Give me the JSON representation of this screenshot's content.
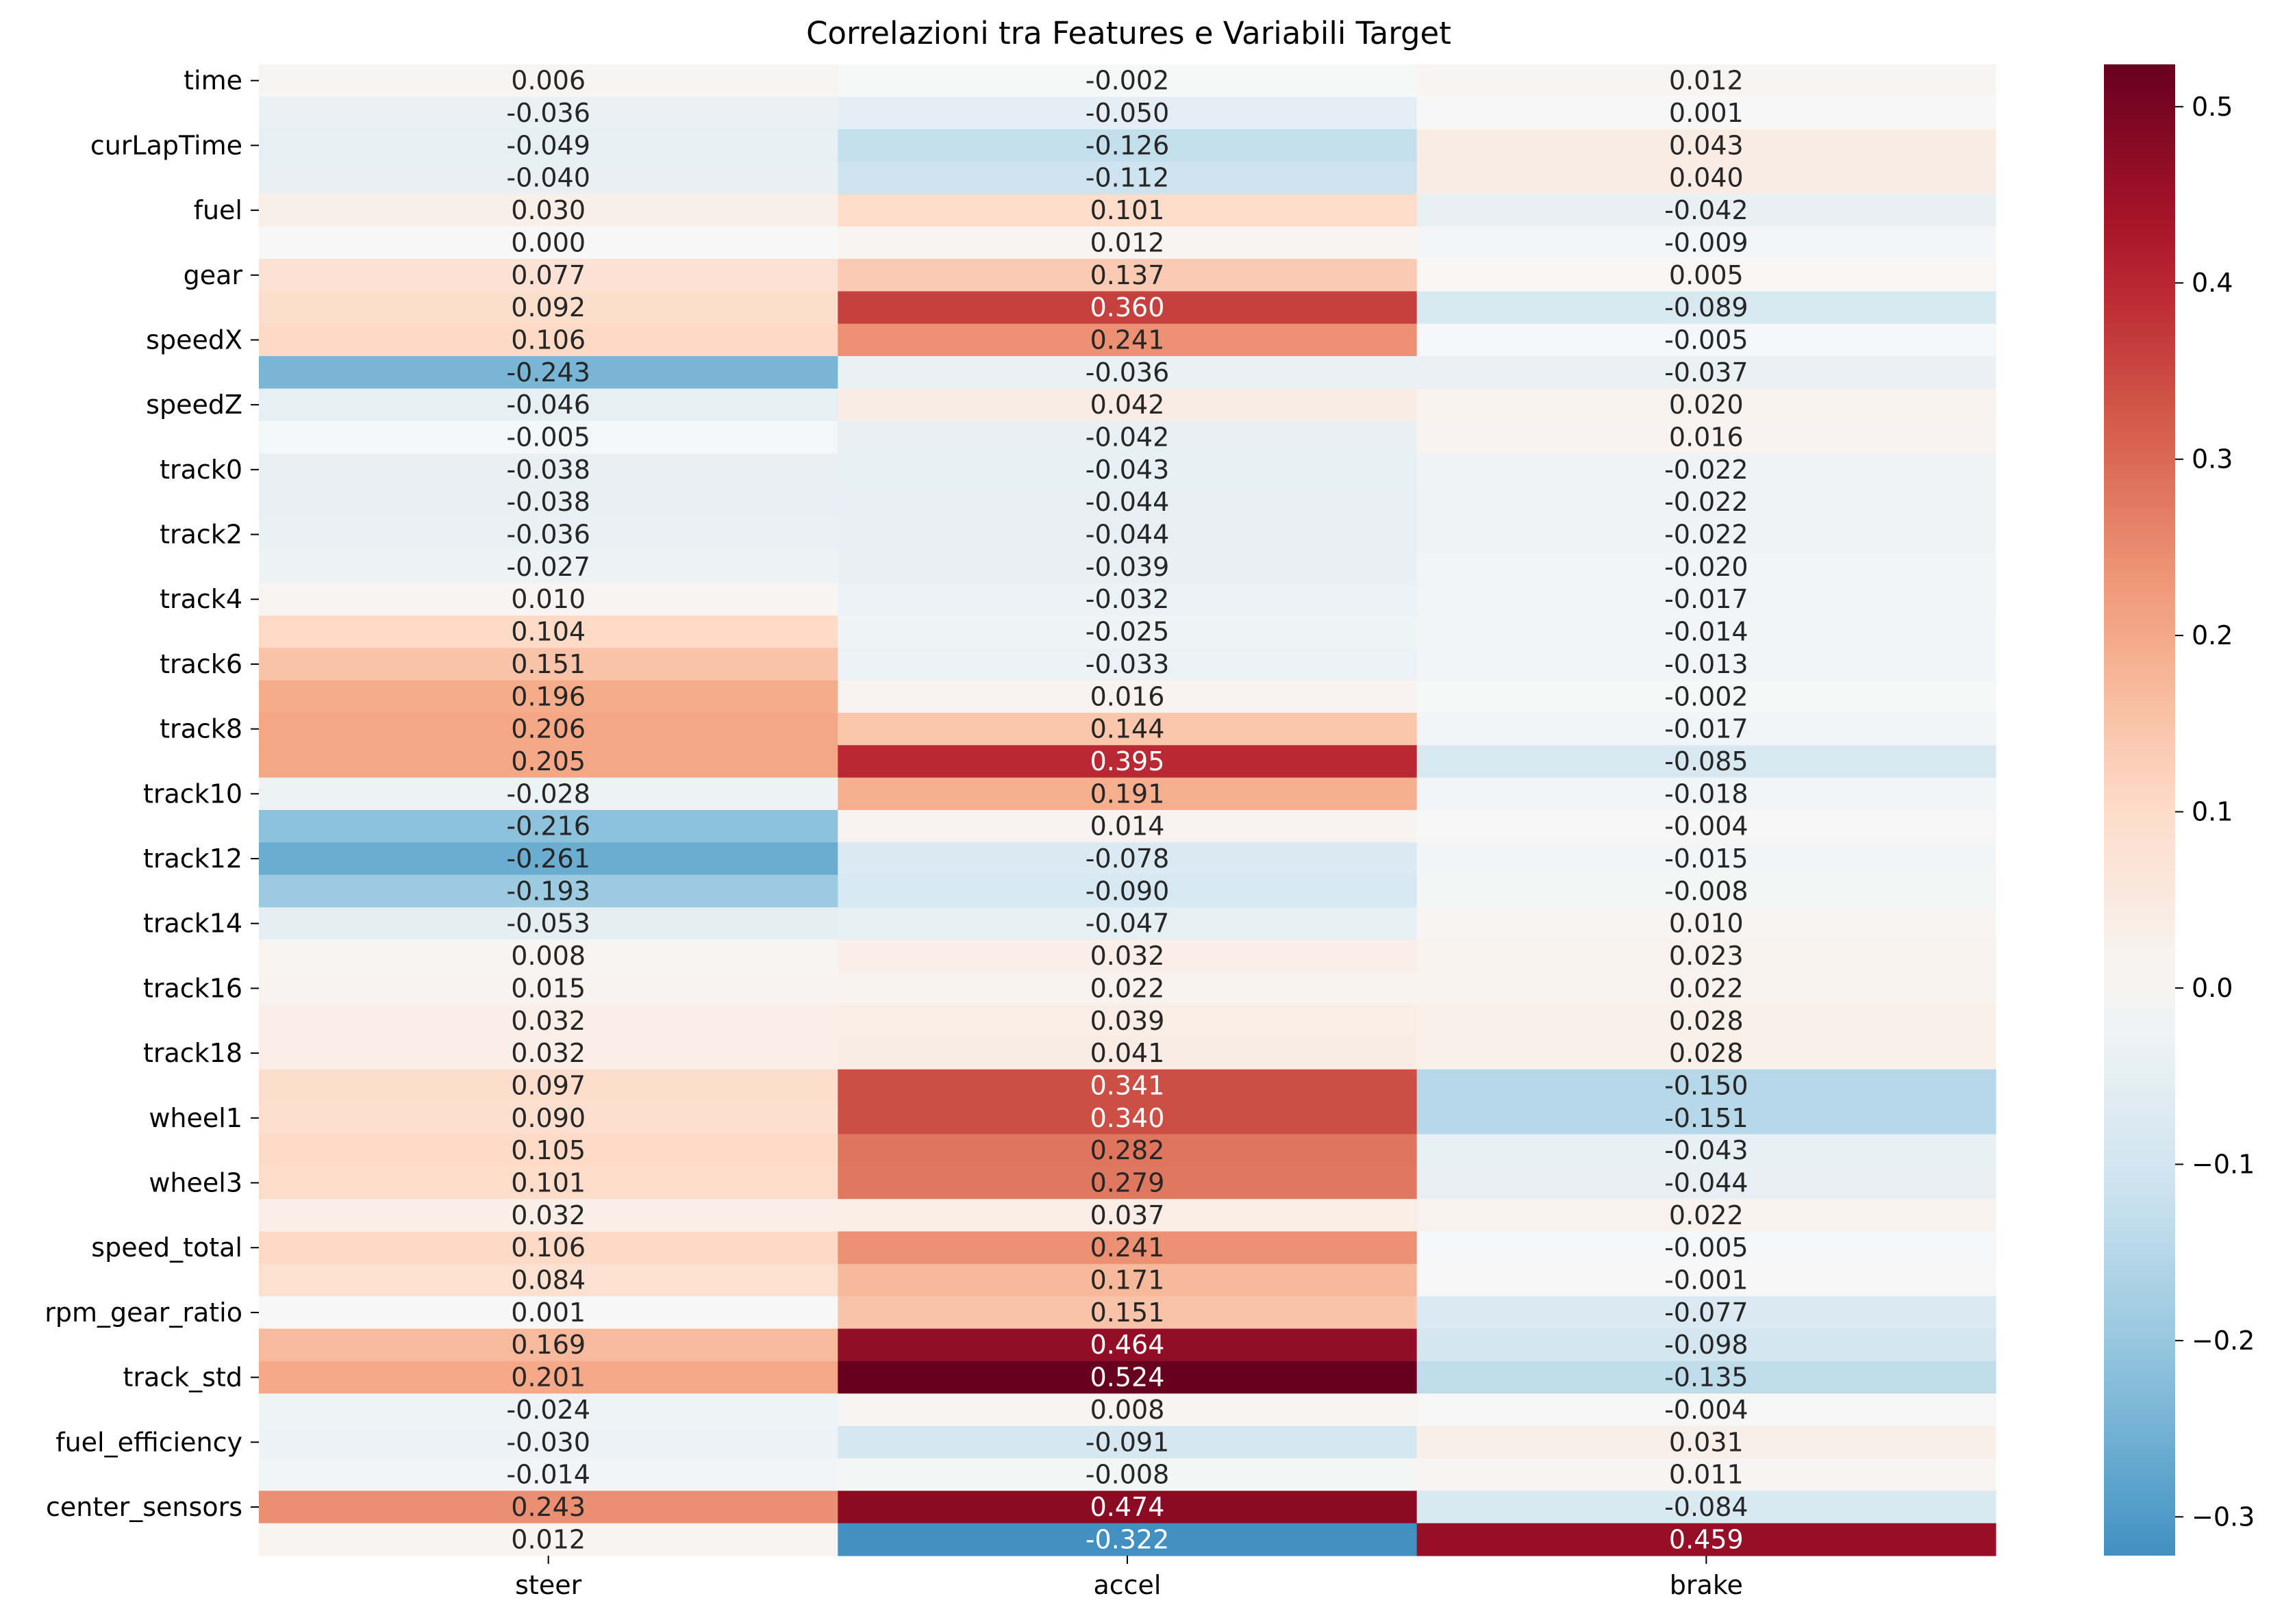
{
  "chart_data": {
    "type": "heatmap",
    "title": "Correlazioni tra Features e Variabili Target",
    "xlabel": "",
    "ylabel": "",
    "columns": [
      "steer",
      "accel",
      "brake"
    ],
    "row_tick_labels": [
      "time",
      "",
      "curLapTime",
      "",
      "fuel",
      "",
      "gear",
      "",
      "speedX",
      "",
      "speedZ",
      "",
      "track0",
      "",
      "track2",
      "",
      "track4",
      "",
      "track6",
      "",
      "track8",
      "",
      "track10",
      "",
      "track12",
      "",
      "track14",
      "",
      "track16",
      "",
      "track18",
      "",
      "wheel1",
      "",
      "wheel3",
      "",
      "speed_total",
      "",
      "rpm_gear_ratio",
      "",
      "track_std",
      "",
      "fuel_efficiency",
      "",
      "center_sensors",
      ""
    ],
    "values": [
      [
        0.006,
        -0.002,
        0.012
      ],
      [
        -0.036,
        -0.05,
        0.001
      ],
      [
        -0.049,
        -0.126,
        0.043
      ],
      [
        -0.04,
        -0.112,
        0.04
      ],
      [
        0.03,
        0.101,
        -0.042
      ],
      [
        0.0,
        0.012,
        -0.009
      ],
      [
        0.077,
        0.137,
        0.005
      ],
      [
        0.092,
        0.36,
        -0.089
      ],
      [
        0.106,
        0.241,
        -0.005
      ],
      [
        -0.243,
        -0.036,
        -0.037
      ],
      [
        -0.046,
        0.042,
        0.02
      ],
      [
        -0.005,
        -0.042,
        0.016
      ],
      [
        -0.038,
        -0.043,
        -0.022
      ],
      [
        -0.038,
        -0.044,
        -0.022
      ],
      [
        -0.036,
        -0.044,
        -0.022
      ],
      [
        -0.027,
        -0.039,
        -0.02
      ],
      [
        0.01,
        -0.032,
        -0.017
      ],
      [
        0.104,
        -0.025,
        -0.014
      ],
      [
        0.151,
        -0.033,
        -0.013
      ],
      [
        0.196,
        0.016,
        -0.002
      ],
      [
        0.206,
        0.144,
        -0.017
      ],
      [
        0.205,
        0.395,
        -0.085
      ],
      [
        -0.028,
        0.191,
        -0.018
      ],
      [
        -0.216,
        0.014,
        -0.004
      ],
      [
        -0.261,
        -0.078,
        -0.015
      ],
      [
        -0.193,
        -0.09,
        -0.008
      ],
      [
        -0.053,
        -0.047,
        0.01
      ],
      [
        0.008,
        0.032,
        0.023
      ],
      [
        0.015,
        0.022,
        0.022
      ],
      [
        0.032,
        0.039,
        0.028
      ],
      [
        0.032,
        0.041,
        0.028
      ],
      [
        0.097,
        0.341,
        -0.15
      ],
      [
        0.09,
        0.34,
        -0.151
      ],
      [
        0.105,
        0.282,
        -0.043
      ],
      [
        0.101,
        0.279,
        -0.044
      ],
      [
        0.032,
        0.037,
        0.022
      ],
      [
        0.106,
        0.241,
        -0.005
      ],
      [
        0.084,
        0.171,
        -0.001
      ],
      [
        0.001,
        0.151,
        -0.077
      ],
      [
        0.169,
        0.464,
        -0.098
      ],
      [
        0.201,
        0.524,
        -0.135
      ],
      [
        -0.024,
        0.008,
        -0.004
      ],
      [
        -0.03,
        -0.091,
        0.031
      ],
      [
        -0.014,
        -0.008,
        0.011
      ],
      [
        0.243,
        0.474,
        -0.084
      ],
      [
        0.012,
        -0.322,
        0.459
      ]
    ],
    "value_format": "0.000",
    "colormap": "RdBu_r",
    "vmin": -0.322,
    "vmax": 0.524,
    "colorbar_ticks": [
      -0.3,
      -0.2,
      -0.1,
      0.0,
      0.1,
      0.2,
      0.3,
      0.4,
      0.5
    ],
    "colorbar_tick_labels": [
      "−0.3",
      "−0.2",
      "−0.1",
      "0.0",
      "0.1",
      "0.2",
      "0.3",
      "0.4",
      "0.5"
    ],
    "grid": false,
    "legend": "colorbar-right"
  }
}
